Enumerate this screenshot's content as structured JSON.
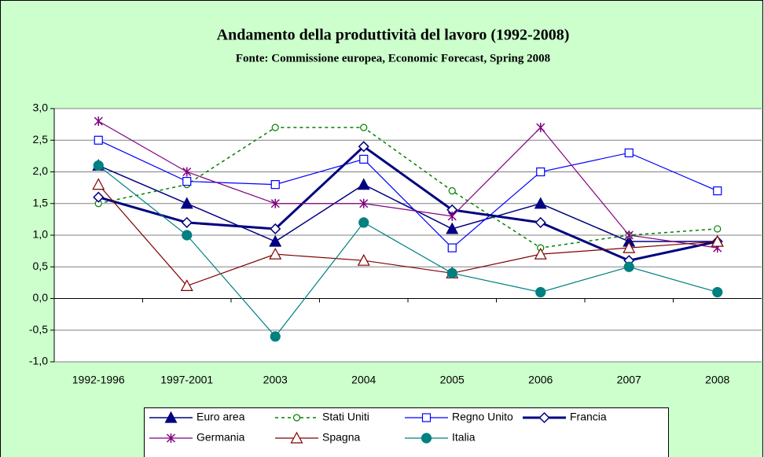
{
  "chart_data": {
    "type": "line",
    "title": "Andamento della produttività del lavoro (1992-2008)",
    "subtitle": "Fonte: Commissione europea, Economic Forecast, Spring 2008",
    "categories": [
      "1992-1996",
      "1997-2001",
      "2003",
      "2004",
      "2005",
      "2006",
      "2007",
      "2008"
    ],
    "ylim": [
      -1,
      3
    ],
    "yticks": [
      {
        "value": -1,
        "label": "-1,0"
      },
      {
        "value": -0.5,
        "label": "-0,5"
      },
      {
        "value": 0,
        "label": "0,0"
      },
      {
        "value": 0.5,
        "label": "0,5"
      },
      {
        "value": 1,
        "label": "1,0"
      },
      {
        "value": 1.5,
        "label": "1,5"
      },
      {
        "value": 2,
        "label": "2,0"
      },
      {
        "value": 2.5,
        "label": "2,5"
      },
      {
        "value": 3,
        "label": "3,0"
      }
    ],
    "grid": true,
    "legend": "bottom",
    "series": [
      {
        "name": "Euro area",
        "color": "#000080",
        "marker": "triangle-filled",
        "line_width": 1.5,
        "dashed": false,
        "values": [
          2.1,
          1.5,
          0.9,
          1.8,
          1.1,
          1.5,
          0.9,
          0.9
        ]
      },
      {
        "name": "Stati Uniti",
        "color": "#008000",
        "marker": "circle-open",
        "line_width": 1.5,
        "dashed": true,
        "values": [
          1.5,
          1.8,
          2.7,
          2.7,
          1.7,
          0.8,
          1.0,
          1.1
        ]
      },
      {
        "name": "Regno Unito",
        "color": "#0000ff",
        "marker": "square-open",
        "line_width": 1.2,
        "dashed": false,
        "values": [
          2.5,
          1.85,
          1.8,
          2.2,
          0.8,
          2.0,
          2.3,
          1.7
        ]
      },
      {
        "name": "Francia",
        "color": "#000080",
        "marker": "diamond-open",
        "line_width": 3,
        "dashed": false,
        "values": [
          1.6,
          1.2,
          1.1,
          2.4,
          1.4,
          1.2,
          0.6,
          0.9
        ]
      },
      {
        "name": "Germania",
        "color": "#800080",
        "marker": "star",
        "line_width": 1.2,
        "dashed": false,
        "values": [
          2.8,
          2.0,
          1.5,
          1.5,
          1.3,
          2.7,
          1.0,
          0.8
        ]
      },
      {
        "name": "Spagna",
        "color": "#800000",
        "marker": "triangle-open",
        "line_width": 1.2,
        "dashed": false,
        "values": [
          1.8,
          0.2,
          0.7,
          0.6,
          0.4,
          0.7,
          0.8,
          0.9
        ]
      },
      {
        "name": "Italia",
        "color": "#008080",
        "marker": "circle-filled",
        "line_width": 1.2,
        "dashed": false,
        "values": [
          2.1,
          1.0,
          -0.6,
          1.2,
          0.4,
          0.1,
          0.5,
          0.1
        ]
      }
    ]
  }
}
